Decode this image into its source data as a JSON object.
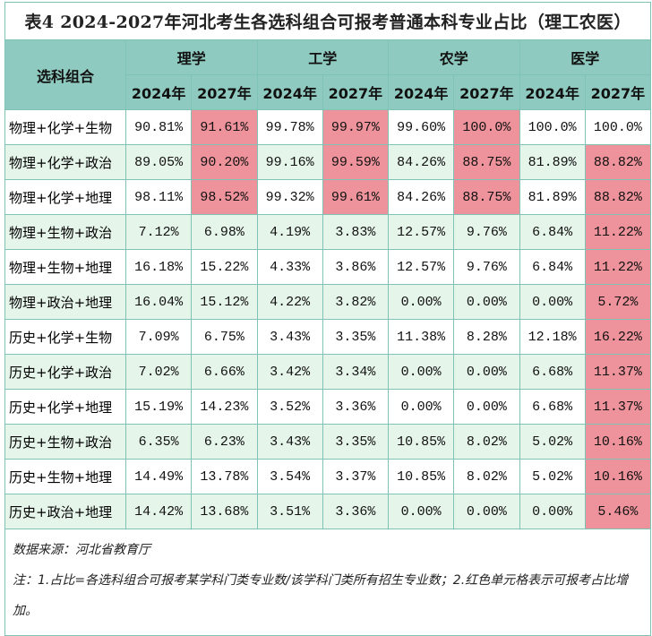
{
  "title": "表4 2024-2027年河北考生各选科组合可报考普通本科专业占比（理工农医）",
  "header": {
    "combo": "选科组合",
    "subjects": [
      "理学",
      "工学",
      "农学",
      "医学"
    ],
    "years": [
      "2024年",
      "2027年",
      "2024年",
      "2027年",
      "2024年",
      "2027年",
      "2024年",
      "2027年"
    ]
  },
  "colors": {
    "header": "#8ecabf",
    "highlight": "#ee939b",
    "alt_row": "#e6f5ea"
  },
  "rows": [
    {
      "combo": "物理+化学+生物",
      "values": [
        "90.81%",
        "91.61%",
        "99.78%",
        "99.97%",
        "99.60%",
        "100.0%",
        "100.0%",
        "100.0%"
      ],
      "increased": [
        1,
        3,
        5
      ]
    },
    {
      "combo": "物理+化学+政治",
      "values": [
        "89.05%",
        "90.20%",
        "99.16%",
        "99.59%",
        "84.26%",
        "88.75%",
        "81.89%",
        "88.82%"
      ],
      "increased": [
        1,
        3,
        5,
        7
      ]
    },
    {
      "combo": "物理+化学+地理",
      "values": [
        "98.11%",
        "98.52%",
        "99.32%",
        "99.61%",
        "84.26%",
        "88.75%",
        "81.89%",
        "88.82%"
      ],
      "increased": [
        1,
        3,
        5,
        7
      ]
    },
    {
      "combo": "物理+生物+政治",
      "values": [
        "7.12%",
        "6.98%",
        "4.19%",
        "3.83%",
        "12.57%",
        "9.76%",
        "6.84%",
        "11.22%"
      ],
      "increased": [
        7
      ]
    },
    {
      "combo": "物理+生物+地理",
      "values": [
        "16.18%",
        "15.22%",
        "4.33%",
        "3.86%",
        "12.57%",
        "9.76%",
        "6.84%",
        "11.22%"
      ],
      "increased": [
        7
      ]
    },
    {
      "combo": "物理+政治+地理",
      "values": [
        "16.04%",
        "15.12%",
        "4.22%",
        "3.82%",
        "0.00%",
        "0.00%",
        "0.00%",
        "5.72%"
      ],
      "increased": [
        7
      ]
    },
    {
      "combo": "历史+化学+生物",
      "values": [
        "7.09%",
        "6.75%",
        "3.43%",
        "3.35%",
        "11.38%",
        "8.28%",
        "12.18%",
        "16.22%"
      ],
      "increased": [
        7
      ]
    },
    {
      "combo": "历史+化学+政治",
      "values": [
        "7.02%",
        "6.66%",
        "3.42%",
        "3.34%",
        "0.00%",
        "0.00%",
        "6.68%",
        "11.37%"
      ],
      "increased": [
        7
      ]
    },
    {
      "combo": "历史+化学+地理",
      "values": [
        "15.19%",
        "14.23%",
        "3.52%",
        "3.36%",
        "0.00%",
        "0.00%",
        "6.68%",
        "11.37%"
      ],
      "increased": [
        7
      ]
    },
    {
      "combo": "历史+生物+政治",
      "values": [
        "6.35%",
        "6.23%",
        "3.43%",
        "3.35%",
        "10.85%",
        "8.02%",
        "5.02%",
        "10.16%"
      ],
      "increased": [
        7
      ]
    },
    {
      "combo": "历史+生物+地理",
      "values": [
        "14.49%",
        "13.78%",
        "3.54%",
        "3.37%",
        "10.85%",
        "8.02%",
        "5.02%",
        "10.16%"
      ],
      "increased": [
        7
      ]
    },
    {
      "combo": "历史+政治+地理",
      "values": [
        "14.42%",
        "13.68%",
        "3.51%",
        "3.36%",
        "0.00%",
        "0.00%",
        "0.00%",
        "5.46%"
      ],
      "increased": [
        7
      ]
    }
  ],
  "footer": {
    "source": "数据来源：河北省教育厅",
    "note": "注：1.占比=各选科组合可报考某学科门类专业数/该学科门类所有招生专业数；2.红色单元格表示可报考占比增加。"
  }
}
